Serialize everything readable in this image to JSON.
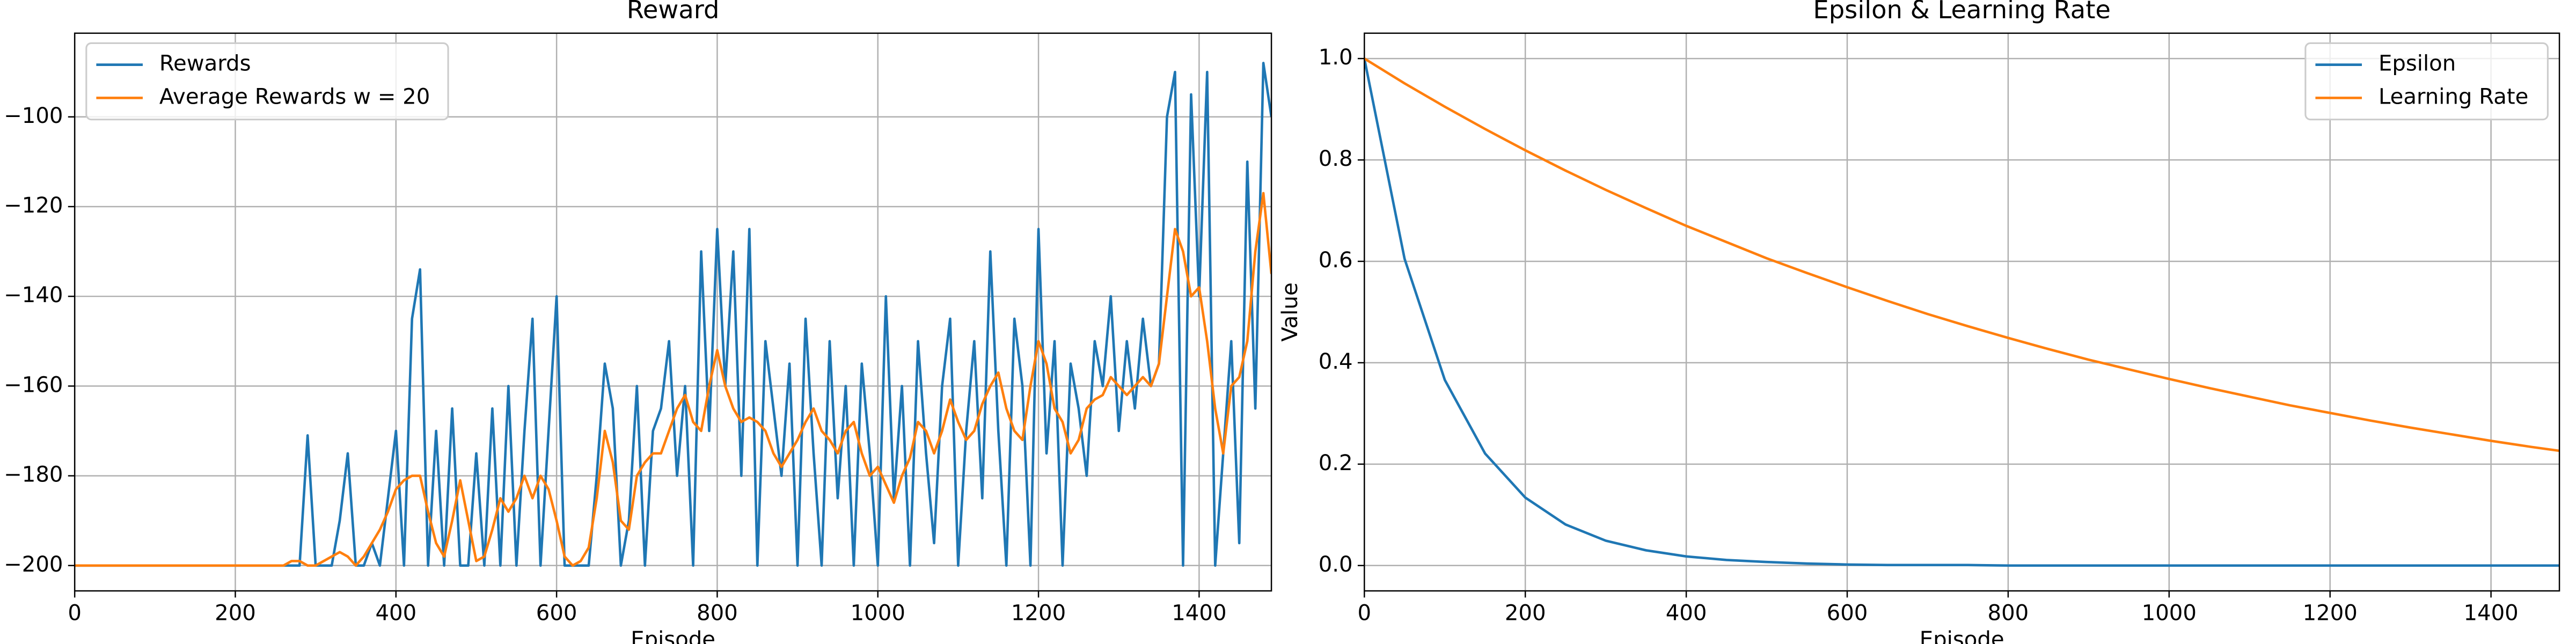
{
  "chart_data": [
    {
      "type": "line",
      "title": "Reward",
      "xlabel": "Episode",
      "grid": true,
      "legend": "upper left",
      "xlim": [
        0,
        1490
      ],
      "ylim": [
        -205.65,
        -81.35
      ],
      "xticks": [
        0,
        200,
        400,
        600,
        800,
        1000,
        1200,
        1400
      ],
      "yticks": [
        {
          "value": -200,
          "label": "−200"
        },
        {
          "value": -180,
          "label": "−180"
        },
        {
          "value": -160,
          "label": "−160"
        },
        {
          "value": -140,
          "label": "−140"
        },
        {
          "value": -120,
          "label": "−120"
        },
        {
          "value": -100,
          "label": "−100"
        }
      ],
      "x": [
        0,
        10,
        20,
        30,
        40,
        50,
        60,
        70,
        80,
        90,
        100,
        110,
        120,
        130,
        140,
        150,
        160,
        170,
        180,
        190,
        200,
        210,
        220,
        230,
        240,
        250,
        260,
        270,
        280,
        290,
        300,
        310,
        320,
        330,
        340,
        350,
        360,
        370,
        380,
        390,
        400,
        410,
        420,
        430,
        440,
        450,
        460,
        470,
        480,
        490,
        500,
        510,
        520,
        530,
        540,
        550,
        560,
        570,
        580,
        590,
        600,
        610,
        620,
        630,
        640,
        650,
        660,
        670,
        680,
        690,
        700,
        710,
        720,
        730,
        740,
        750,
        760,
        770,
        780,
        790,
        800,
        810,
        820,
        830,
        840,
        850,
        860,
        870,
        880,
        890,
        900,
        910,
        920,
        930,
        940,
        950,
        960,
        970,
        980,
        990,
        1000,
        1010,
        1020,
        1030,
        1040,
        1050,
        1060,
        1070,
        1080,
        1090,
        1100,
        1110,
        1120,
        1130,
        1140,
        1150,
        1160,
        1170,
        1180,
        1190,
        1200,
        1210,
        1220,
        1230,
        1240,
        1250,
        1260,
        1270,
        1280,
        1290,
        1300,
        1310,
        1320,
        1330,
        1340,
        1350,
        1360,
        1370,
        1380,
        1390,
        1400,
        1410,
        1420,
        1430,
        1440,
        1450,
        1460,
        1470,
        1480,
        1490
      ],
      "series": [
        {
          "name": "Rewards",
          "color": "#1f77b4",
          "values": [
            -200,
            -200,
            -200,
            -200,
            -200,
            -200,
            -200,
            -200,
            -200,
            -200,
            -200,
            -200,
            -200,
            -200,
            -200,
            -200,
            -200,
            -200,
            -200,
            -200,
            -200,
            -200,
            -200,
            -200,
            -200,
            -200,
            -200,
            -200,
            -200,
            -171,
            -200,
            -200,
            -200,
            -190,
            -175,
            -200,
            -200,
            -195,
            -200,
            -185,
            -170,
            -200,
            -145,
            -134,
            -200,
            -170,
            -200,
            -165,
            -200,
            -200,
            -175,
            -200,
            -165,
            -200,
            -160,
            -200,
            -170,
            -145,
            -200,
            -170,
            -140,
            -200,
            -200,
            -200,
            -200,
            -180,
            -155,
            -165,
            -200,
            -190,
            -160,
            -200,
            -170,
            -165,
            -150,
            -180,
            -160,
            -200,
            -130,
            -170,
            -125,
            -160,
            -130,
            -180,
            -125,
            -200,
            -150,
            -165,
            -180,
            -155,
            -200,
            -145,
            -175,
            -200,
            -150,
            -185,
            -160,
            -200,
            -155,
            -175,
            -200,
            -140,
            -185,
            -160,
            -200,
            -150,
            -175,
            -195,
            -160,
            -145,
            -200,
            -170,
            -150,
            -185,
            -130,
            -170,
            -200,
            -145,
            -160,
            -200,
            -125,
            -175,
            -150,
            -200,
            -155,
            -165,
            -180,
            -150,
            -160,
            -140,
            -170,
            -150,
            -165,
            -145,
            -160,
            -155,
            -100,
            -90,
            -200,
            -95,
            -140,
            -90,
            -200,
            -175,
            -150,
            -195,
            -110,
            -165,
            -88,
            -100
          ]
        },
        {
          "name": "Average Rewards w = 20",
          "color": "#ff7f0e",
          "values": [
            -200,
            -200,
            -200,
            -200,
            -200,
            -200,
            -200,
            -200,
            -200,
            -200,
            -200,
            -200,
            -200,
            -200,
            -200,
            -200,
            -200,
            -200,
            -200,
            -200,
            -200,
            -200,
            -200,
            -200,
            -200,
            -200,
            -200,
            -199,
            -199,
            -200,
            -200,
            -199,
            -198,
            -197,
            -198,
            -200,
            -198,
            -195,
            -192,
            -188,
            -183,
            -181,
            -180,
            -180,
            -188,
            -195,
            -198,
            -190,
            -181,
            -190,
            -199,
            -198,
            -192,
            -185,
            -188,
            -185,
            -180,
            -185,
            -180,
            -183,
            -190,
            -198,
            -200,
            -199,
            -196,
            -185,
            -170,
            -177,
            -190,
            -192,
            -180,
            -177,
            -175,
            -175,
            -170,
            -165,
            -162,
            -168,
            -170,
            -160,
            -152,
            -160,
            -165,
            -168,
            -167,
            -168,
            -170,
            -175,
            -178,
            -175,
            -172,
            -168,
            -165,
            -170,
            -172,
            -175,
            -170,
            -168,
            -175,
            -180,
            -178,
            -182,
            -186,
            -180,
            -176,
            -168,
            -170,
            -175,
            -170,
            -163,
            -168,
            -172,
            -170,
            -164,
            -160,
            -157,
            -165,
            -170,
            -172,
            -160,
            -150,
            -155,
            -165,
            -168,
            -175,
            -172,
            -165,
            -163,
            -162,
            -158,
            -160,
            -162,
            -160,
            -158,
            -160,
            -155,
            -140,
            -125,
            -130,
            -140,
            -138,
            -150,
            -165,
            -175,
            -160,
            -158,
            -150,
            -130,
            -117,
            -135
          ]
        }
      ]
    },
    {
      "type": "line",
      "title": "Epsilon & Learning Rate",
      "xlabel": "Episode",
      "ylabel": "Value",
      "grid": true,
      "legend": "upper right",
      "xlim": [
        0,
        1485
      ],
      "ylim": [
        -0.05,
        1.05
      ],
      "xticks": [
        0,
        200,
        400,
        600,
        800,
        1000,
        1200,
        1400
      ],
      "yticks": [
        {
          "value": 0,
          "label": "0.0"
        },
        0.2,
        0.4,
        0.6,
        0.8,
        {
          "value": 1,
          "label": "1.0"
        }
      ],
      "x": [
        0,
        50,
        100,
        150,
        200,
        250,
        300,
        350,
        400,
        450,
        500,
        550,
        600,
        650,
        700,
        750,
        800,
        850,
        900,
        950,
        1000,
        1050,
        1100,
        1150,
        1200,
        1250,
        1300,
        1350,
        1400,
        1450,
        1500
      ],
      "series": [
        {
          "name": "Epsilon",
          "color": "#1f77b4",
          "values": [
            1,
            0.605,
            0.366,
            0.221,
            0.134,
            0.081,
            0.049,
            0.03,
            0.018,
            0.011,
            0.007,
            0.004,
            0.002,
            0.001,
            0.001,
            0.001,
            0,
            0,
            0,
            0,
            0,
            0,
            0,
            0,
            0,
            0,
            0,
            0,
            0,
            0,
            0
          ]
        },
        {
          "name": "Learning Rate",
          "color": "#ff7f0e",
          "values": [
            1,
            0.951,
            0.905,
            0.861,
            0.819,
            0.779,
            0.741,
            0.705,
            0.67,
            0.638,
            0.606,
            0.577,
            0.549,
            0.522,
            0.496,
            0.472,
            0.449,
            0.427,
            0.406,
            0.387,
            0.368,
            0.35,
            0.333,
            0.316,
            0.301,
            0.286,
            0.272,
            0.259,
            0.246,
            0.234,
            0.223
          ]
        }
      ]
    }
  ]
}
